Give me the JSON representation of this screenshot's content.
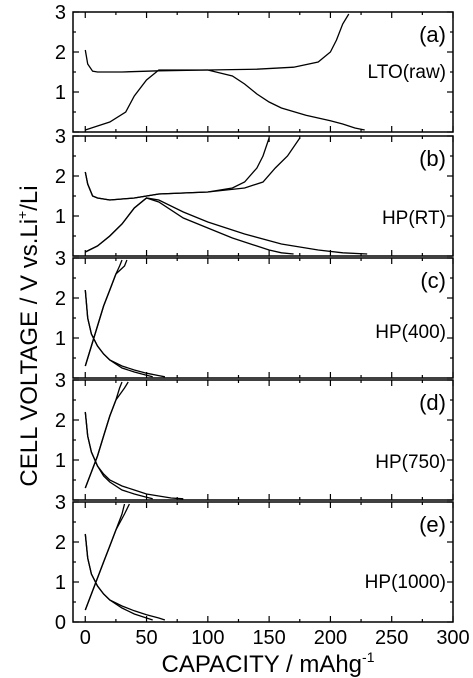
{
  "figure": {
    "xlabel_main": "CAPACITY / mAhg",
    "xlabel_sup": "-1",
    "ylabel_main": "CELL VOLTAGE / V vs.Li",
    "ylabel_sup": "+",
    "ylabel_tail": "/Li",
    "x_ticks": [
      "0",
      "50",
      "100",
      "150",
      "200",
      "250",
      "300"
    ],
    "y_ticks_top": [
      "1",
      "2",
      "3"
    ],
    "y_ticks_bottom": [
      "0",
      "1",
      "2",
      "3"
    ]
  },
  "chart_data": [
    {
      "type": "line",
      "panel": "(a)",
      "label": "LTO(raw)",
      "xlim": [
        -10,
        300
      ],
      "ylim": [
        0,
        3
      ],
      "series": [
        {
          "x": [
            0,
            10,
            20,
            33,
            40,
            50,
            60,
            100,
            120,
            130,
            140,
            150,
            160,
            180,
            200,
            210,
            220,
            228
          ],
          "y": [
            0.05,
            0.15,
            0.25,
            0.5,
            0.9,
            1.3,
            1.55,
            1.55,
            1.4,
            1.2,
            0.95,
            0.75,
            0.6,
            0.42,
            0.28,
            0.2,
            0.1,
            0.05
          ]
        },
        {
          "x": [
            0,
            2,
            6,
            10,
            30,
            60,
            100,
            140,
            170,
            190,
            200,
            205,
            210,
            215
          ],
          "y": [
            2.05,
            1.7,
            1.52,
            1.5,
            1.5,
            1.53,
            1.55,
            1.57,
            1.62,
            1.75,
            2.0,
            2.3,
            2.7,
            2.95
          ]
        }
      ]
    },
    {
      "type": "line",
      "panel": "(b)",
      "label": "HP(RT)",
      "xlim": [
        -10,
        300
      ],
      "ylim": [
        0,
        3
      ],
      "series": [
        {
          "x": [
            0,
            10,
            20,
            30,
            40,
            50,
            60,
            80,
            100,
            120,
            140,
            150,
            160,
            170
          ],
          "y": [
            0.1,
            0.25,
            0.5,
            0.8,
            1.2,
            1.45,
            1.35,
            0.95,
            0.7,
            0.45,
            0.25,
            0.15,
            0.08,
            0.05
          ]
        },
        {
          "x": [
            0,
            10,
            20,
            30,
            40,
            50,
            60,
            80,
            100,
            130,
            160,
            190,
            210,
            230
          ],
          "y": [
            0.1,
            0.25,
            0.5,
            0.8,
            1.2,
            1.45,
            1.4,
            1.1,
            0.85,
            0.55,
            0.3,
            0.15,
            0.08,
            0.05
          ]
        },
        {
          "x": [
            0,
            2,
            6,
            10,
            20,
            40,
            60,
            100,
            120,
            130,
            140,
            145,
            150
          ],
          "y": [
            2.1,
            1.8,
            1.5,
            1.45,
            1.4,
            1.45,
            1.55,
            1.6,
            1.7,
            1.85,
            2.2,
            2.5,
            2.95
          ]
        },
        {
          "x": [
            0,
            2,
            6,
            10,
            20,
            40,
            60,
            100,
            130,
            145,
            155,
            165,
            175
          ],
          "y": [
            2.1,
            1.8,
            1.5,
            1.45,
            1.4,
            1.45,
            1.55,
            1.6,
            1.7,
            1.85,
            2.2,
            2.5,
            2.95
          ]
        }
      ]
    },
    {
      "type": "line",
      "panel": "(c)",
      "label": "HP(400)",
      "xlim": [
        -10,
        300
      ],
      "ylim": [
        0,
        3
      ],
      "series": [
        {
          "x": [
            0,
            5,
            10,
            15,
            20,
            25,
            28,
            30
          ],
          "y": [
            0.3,
            0.8,
            1.3,
            1.8,
            2.2,
            2.6,
            2.8,
            2.95
          ]
        },
        {
          "x": [
            0,
            5,
            10,
            15,
            20,
            25,
            32,
            34
          ],
          "y": [
            0.3,
            0.8,
            1.3,
            1.8,
            2.2,
            2.6,
            2.8,
            2.95
          ]
        },
        {
          "x": [
            0,
            2,
            5,
            10,
            15,
            20,
            30,
            40,
            50,
            55
          ],
          "y": [
            2.2,
            1.5,
            1.1,
            0.8,
            0.6,
            0.45,
            0.25,
            0.15,
            0.07,
            0.03
          ]
        },
        {
          "x": [
            0,
            2,
            5,
            10,
            15,
            20,
            30,
            40,
            50,
            60,
            65
          ],
          "y": [
            2.2,
            1.5,
            1.1,
            0.8,
            0.6,
            0.45,
            0.3,
            0.2,
            0.12,
            0.06,
            0.03
          ]
        }
      ]
    },
    {
      "type": "line",
      "panel": "(d)",
      "label": "HP(750)",
      "xlim": [
        -10,
        300
      ],
      "ylim": [
        0,
        3
      ],
      "series": [
        {
          "x": [
            0,
            5,
            10,
            15,
            20,
            25,
            28,
            30
          ],
          "y": [
            0.3,
            0.7,
            1.1,
            1.6,
            2.1,
            2.5,
            2.8,
            2.95
          ]
        },
        {
          "x": [
            0,
            5,
            10,
            15,
            20,
            25,
            32,
            35
          ],
          "y": [
            0.3,
            0.7,
            1.1,
            1.6,
            2.1,
            2.5,
            2.8,
            2.95
          ]
        },
        {
          "x": [
            0,
            2,
            5,
            10,
            15,
            20,
            30,
            40,
            50,
            55
          ],
          "y": [
            2.2,
            1.6,
            1.2,
            0.85,
            0.6,
            0.45,
            0.25,
            0.15,
            0.07,
            0.03
          ]
        },
        {
          "x": [
            0,
            2,
            5,
            10,
            15,
            20,
            30,
            40,
            50,
            60,
            70,
            80
          ],
          "y": [
            2.2,
            1.6,
            1.2,
            0.85,
            0.65,
            0.5,
            0.35,
            0.25,
            0.15,
            0.1,
            0.05,
            0.03
          ]
        }
      ]
    },
    {
      "type": "line",
      "panel": "(e)",
      "label": "HP(1000)",
      "xlim": [
        -10,
        300
      ],
      "ylim": [
        0,
        3
      ],
      "series": [
        {
          "x": [
            0,
            5,
            10,
            15,
            20,
            25,
            30,
            32
          ],
          "y": [
            0.3,
            0.7,
            1.1,
            1.5,
            1.9,
            2.3,
            2.7,
            2.95
          ]
        },
        {
          "x": [
            0,
            5,
            10,
            15,
            20,
            25,
            32,
            36
          ],
          "y": [
            0.3,
            0.7,
            1.1,
            1.5,
            1.9,
            2.3,
            2.7,
            2.95
          ]
        },
        {
          "x": [
            0,
            2,
            5,
            10,
            15,
            20,
            30,
            40,
            50,
            55
          ],
          "y": [
            2.2,
            1.6,
            1.2,
            0.9,
            0.7,
            0.55,
            0.35,
            0.2,
            0.1,
            0.05
          ]
        },
        {
          "x": [
            0,
            2,
            5,
            10,
            15,
            20,
            30,
            40,
            50,
            60,
            65
          ],
          "y": [
            2.2,
            1.6,
            1.2,
            0.9,
            0.7,
            0.55,
            0.4,
            0.28,
            0.18,
            0.1,
            0.05
          ]
        }
      ]
    }
  ]
}
